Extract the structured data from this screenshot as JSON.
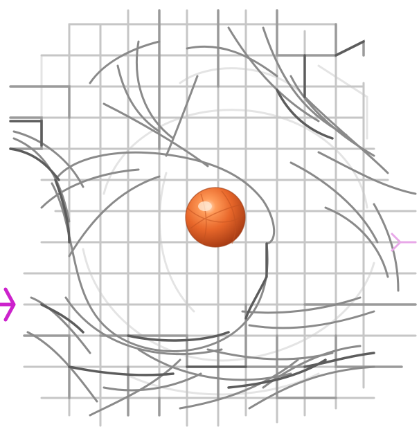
{
  "scene": {
    "subject": "molecular-density-mesh-with-metal-ion",
    "colors": {
      "background": "#ffffff",
      "mesh_dark": "#5a5a5a",
      "mesh_mid": "#8e8e8e",
      "mesh_light": "#c4c4c4",
      "mesh_faint": "#e2e2e2",
      "ion_base": "#e8672a",
      "ion_dark": "#b0431a",
      "ion_highlight": "#ffd2b0",
      "marker": "#cc22cc"
    },
    "icons": [
      "metal-ion-sphere",
      "magenta-atom-marker-left",
      "magenta-atom-marker-right"
    ]
  }
}
